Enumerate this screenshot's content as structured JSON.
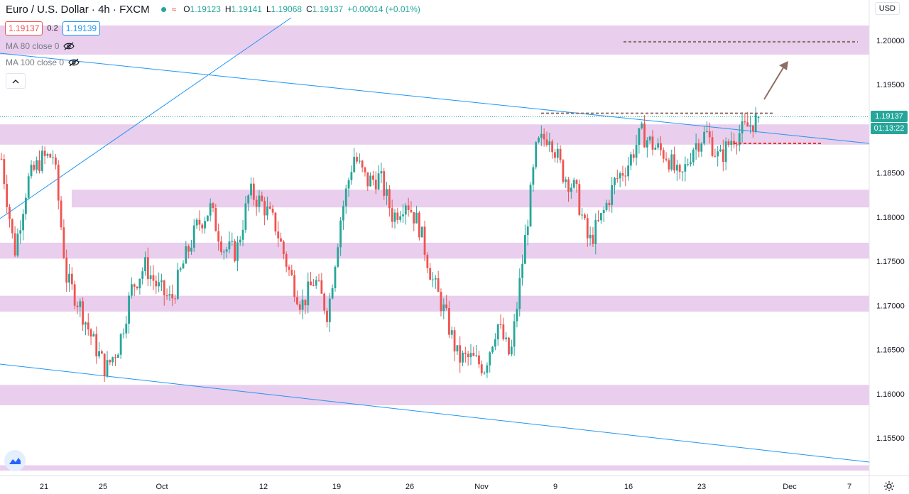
{
  "header": {
    "symbol": "Euro / U.S. Dollar",
    "interval": "4h",
    "exchange": "FXCM",
    "ohlc": {
      "o_label": "O",
      "o": "1.19123",
      "h_label": "H",
      "h": "1.19141",
      "l_label": "L",
      "l": "1.19068",
      "c_label": "C",
      "c": "1.19137",
      "change": "+0.00014 (+0.01%)"
    }
  },
  "trade": {
    "sell": "1.19137",
    "spread": "0.2",
    "buy": "1.19139"
  },
  "indicators": [
    {
      "label": "MA 80 close 0"
    },
    {
      "label": "MA 100 close 0"
    }
  ],
  "currency_button": "USD",
  "price_tag": {
    "last": "1.19137",
    "countdown": "01:13:22"
  },
  "chart_data": {
    "type": "candlestick",
    "y_ticks": [
      "1.20000",
      "1.19500",
      "1.19000",
      "1.18500",
      "1.18000",
      "1.17500",
      "1.17000",
      "1.16500",
      "1.16000",
      "1.15500"
    ],
    "x_ticks": [
      "21",
      "25",
      "Oct",
      "12",
      "19",
      "26",
      "Nov",
      "9",
      "16",
      "23",
      "Dec",
      "7"
    ],
    "ylim": [
      1.1513,
      1.2057
    ],
    "zones": [
      [
        1.1984,
        1.2017
      ],
      [
        1.1882,
        1.1905
      ],
      [
        1.1811,
        1.1831
      ],
      [
        1.1753,
        1.1771
      ],
      [
        1.1693,
        1.1711
      ],
      [
        1.1587,
        1.161
      ],
      [
        1.1513,
        1.1519
      ]
    ],
    "price_path": [
      1.1866,
      1.176,
      1.184,
      1.1865,
      1.187,
      1.173,
      1.17,
      1.166,
      1.1627,
      1.1655,
      1.172,
      1.1745,
      1.172,
      1.1705,
      1.175,
      1.179,
      1.181,
      1.1765,
      1.176,
      1.1828,
      1.1815,
      1.179,
      1.174,
      1.17,
      1.173,
      1.169,
      1.18,
      1.187,
      1.184,
      1.1845,
      1.18,
      1.182,
      1.179,
      1.173,
      1.169,
      1.164,
      1.164,
      1.163,
      1.168,
      1.164,
      1.176,
      1.188,
      1.1895,
      1.185,
      1.183,
      1.177,
      1.18,
      1.184,
      1.186,
      1.1895,
      1.188,
      1.187,
      1.184,
      1.188,
      1.1895,
      1.1865,
      1.189,
      1.19,
      1.1913
    ],
    "current_price": 1.19137,
    "last_high": 1.19141,
    "last_low": 1.19068
  }
}
